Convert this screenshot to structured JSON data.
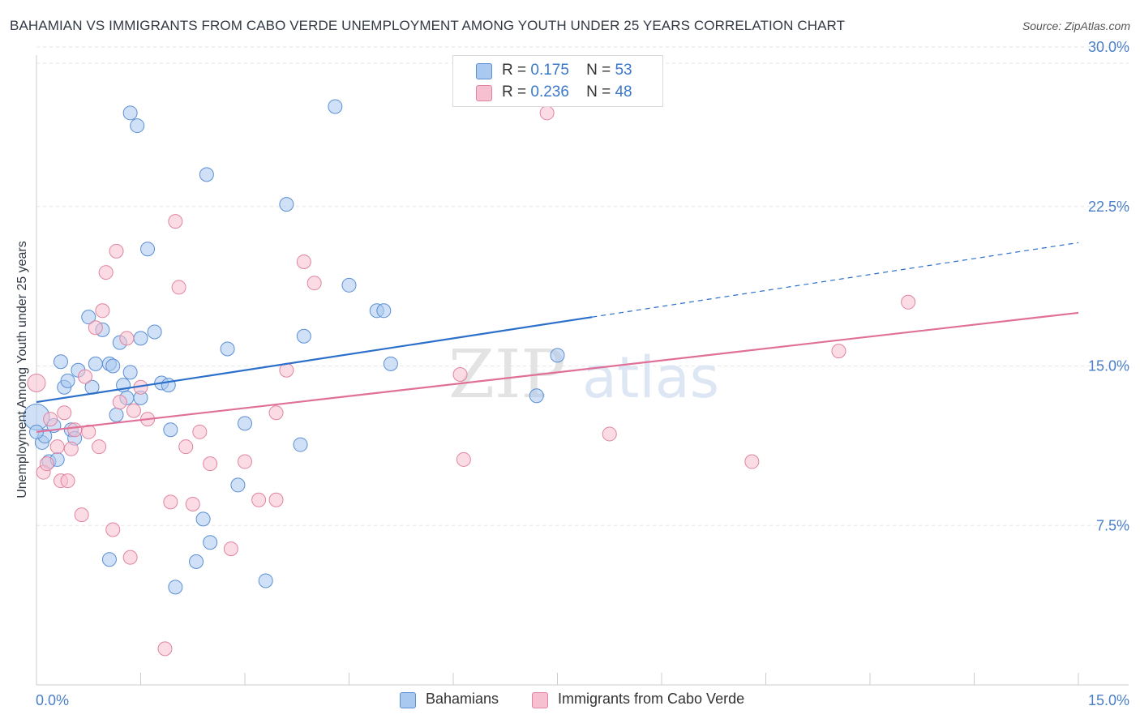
{
  "title": "BAHAMIAN VS IMMIGRANTS FROM CABO VERDE UNEMPLOYMENT AMONG YOUTH UNDER 25 YEARS CORRELATION CHART",
  "source": "Source: ZipAtlas.com",
  "watermark": {
    "zip": "ZIP",
    "atlas": "atlas"
  },
  "legend": {
    "r_label": "R =",
    "n_label": "N =",
    "rows": [
      {
        "r": "0.175",
        "n": "53",
        "color": "#aac9f0",
        "border": "#5b8fd4"
      },
      {
        "r": "0.236",
        "n": "48",
        "color": "#f7c0d0",
        "border": "#e0849f"
      }
    ]
  },
  "bottom_legend": [
    {
      "label": "Bahamians",
      "color": "#aac9f0",
      "border": "#5b8fd4"
    },
    {
      "label": "Immigrants from Cabo Verde",
      "color": "#f7c0d0",
      "border": "#e0849f"
    }
  ],
  "colors": {
    "blue_line": "#2c6fca",
    "pink_line": "#e07098",
    "axis_text": "#4a7fc8",
    "grid": "#e6e6e6"
  },
  "chart_data": {
    "type": "scatter",
    "title": "BAHAMIAN VS IMMIGRANTS FROM CABO VERDE UNEMPLOYMENT AMONG YOUTH UNDER 25 YEARS CORRELATION CHART",
    "ylabel": "Unemployment Among Youth under 25 years",
    "xlabel": "",
    "xlim": [
      0,
      15
    ],
    "ylim": [
      0,
      30
    ],
    "x_tick_labels": {
      "min": "0.0%",
      "max": "15.0%"
    },
    "y_ticks": [
      7.5,
      15,
      22.5,
      30
    ],
    "y_tick_labels": [
      "7.5%",
      "15.0%",
      "22.5%",
      "30.0%"
    ],
    "grid": true,
    "legend_placement": "top-center",
    "series": [
      {
        "name": "Bahamians",
        "color": "#aac9f0",
        "stroke": "#5b8fd4",
        "trend": {
          "x0": 0,
          "y0": 13.3,
          "x1": 8.0,
          "y1": 17.3,
          "dashed_to_x": 15,
          "dashed_to_y": 20.8
        },
        "points": [
          [
            0.0,
            12.6
          ],
          [
            0.08,
            11.4
          ],
          [
            0.12,
            11.7
          ],
          [
            0.18,
            10.5
          ],
          [
            0.25,
            12.2
          ],
          [
            0.3,
            10.6
          ],
          [
            0.35,
            15.2
          ],
          [
            0.4,
            14.0
          ],
          [
            0.45,
            14.3
          ],
          [
            0.5,
            12.0
          ],
          [
            0.55,
            11.6
          ],
          [
            0.6,
            14.8
          ],
          [
            0.75,
            17.3
          ],
          [
            0.8,
            14.0
          ],
          [
            0.85,
            15.1
          ],
          [
            0.95,
            16.7
          ],
          [
            1.05,
            15.1
          ],
          [
            1.05,
            5.9
          ],
          [
            1.1,
            15.0
          ],
          [
            1.15,
            12.7
          ],
          [
            1.2,
            16.1
          ],
          [
            1.25,
            14.1
          ],
          [
            1.3,
            13.5
          ],
          [
            1.35,
            14.7
          ],
          [
            1.35,
            26.9
          ],
          [
            1.45,
            26.3
          ],
          [
            1.5,
            16.3
          ],
          [
            1.5,
            13.5
          ],
          [
            1.6,
            20.5
          ],
          [
            1.7,
            16.6
          ],
          [
            1.8,
            14.2
          ],
          [
            1.9,
            14.1
          ],
          [
            1.93,
            12.0
          ],
          [
            2.0,
            4.6
          ],
          [
            2.3,
            5.8
          ],
          [
            2.4,
            7.8
          ],
          [
            2.45,
            24.0
          ],
          [
            2.5,
            6.7
          ],
          [
            2.75,
            15.8
          ],
          [
            2.9,
            9.4
          ],
          [
            3.0,
            12.3
          ],
          [
            3.3,
            4.9
          ],
          [
            3.6,
            22.6
          ],
          [
            3.8,
            11.3
          ],
          [
            3.85,
            16.4
          ],
          [
            4.3,
            27.2
          ],
          [
            4.5,
            18.8
          ],
          [
            4.9,
            17.6
          ],
          [
            5.0,
            17.6
          ],
          [
            5.1,
            15.1
          ],
          [
            7.2,
            13.6
          ],
          [
            7.5,
            15.5
          ],
          [
            0.0,
            11.9
          ]
        ]
      },
      {
        "name": "Immigrants from Cabo Verde",
        "color": "#f7c0d0",
        "stroke": "#e0849f",
        "trend": {
          "x0": 0,
          "y0": 11.9,
          "x1": 15,
          "y1": 17.5
        },
        "points": [
          [
            0.0,
            14.2
          ],
          [
            0.1,
            10.0
          ],
          [
            0.15,
            10.4
          ],
          [
            0.2,
            12.5
          ],
          [
            0.3,
            11.2
          ],
          [
            0.35,
            9.6
          ],
          [
            0.4,
            12.8
          ],
          [
            0.45,
            9.6
          ],
          [
            0.5,
            11.1
          ],
          [
            0.55,
            12.0
          ],
          [
            0.65,
            8.0
          ],
          [
            0.7,
            14.5
          ],
          [
            0.75,
            11.9
          ],
          [
            0.85,
            16.8
          ],
          [
            0.9,
            11.2
          ],
          [
            0.95,
            17.6
          ],
          [
            1.0,
            19.4
          ],
          [
            1.1,
            7.3
          ],
          [
            1.15,
            20.4
          ],
          [
            1.2,
            13.3
          ],
          [
            1.3,
            16.3
          ],
          [
            1.35,
            6.0
          ],
          [
            1.4,
            12.9
          ],
          [
            1.5,
            14.0
          ],
          [
            1.6,
            12.5
          ],
          [
            1.85,
            1.7
          ],
          [
            1.93,
            8.6
          ],
          [
            2.0,
            21.8
          ],
          [
            2.05,
            18.7
          ],
          [
            2.15,
            11.2
          ],
          [
            2.25,
            8.5
          ],
          [
            2.35,
            11.9
          ],
          [
            2.5,
            10.4
          ],
          [
            2.8,
            6.4
          ],
          [
            3.0,
            10.5
          ],
          [
            3.2,
            8.7
          ],
          [
            3.45,
            12.8
          ],
          [
            3.45,
            8.7
          ],
          [
            3.6,
            14.8
          ],
          [
            3.85,
            19.9
          ],
          [
            4.0,
            18.9
          ],
          [
            6.1,
            14.6
          ],
          [
            6.15,
            10.6
          ],
          [
            7.35,
            26.9
          ],
          [
            8.25,
            11.8
          ],
          [
            10.3,
            10.5
          ],
          [
            11.55,
            15.7
          ],
          [
            12.55,
            18.0
          ]
        ]
      }
    ]
  }
}
